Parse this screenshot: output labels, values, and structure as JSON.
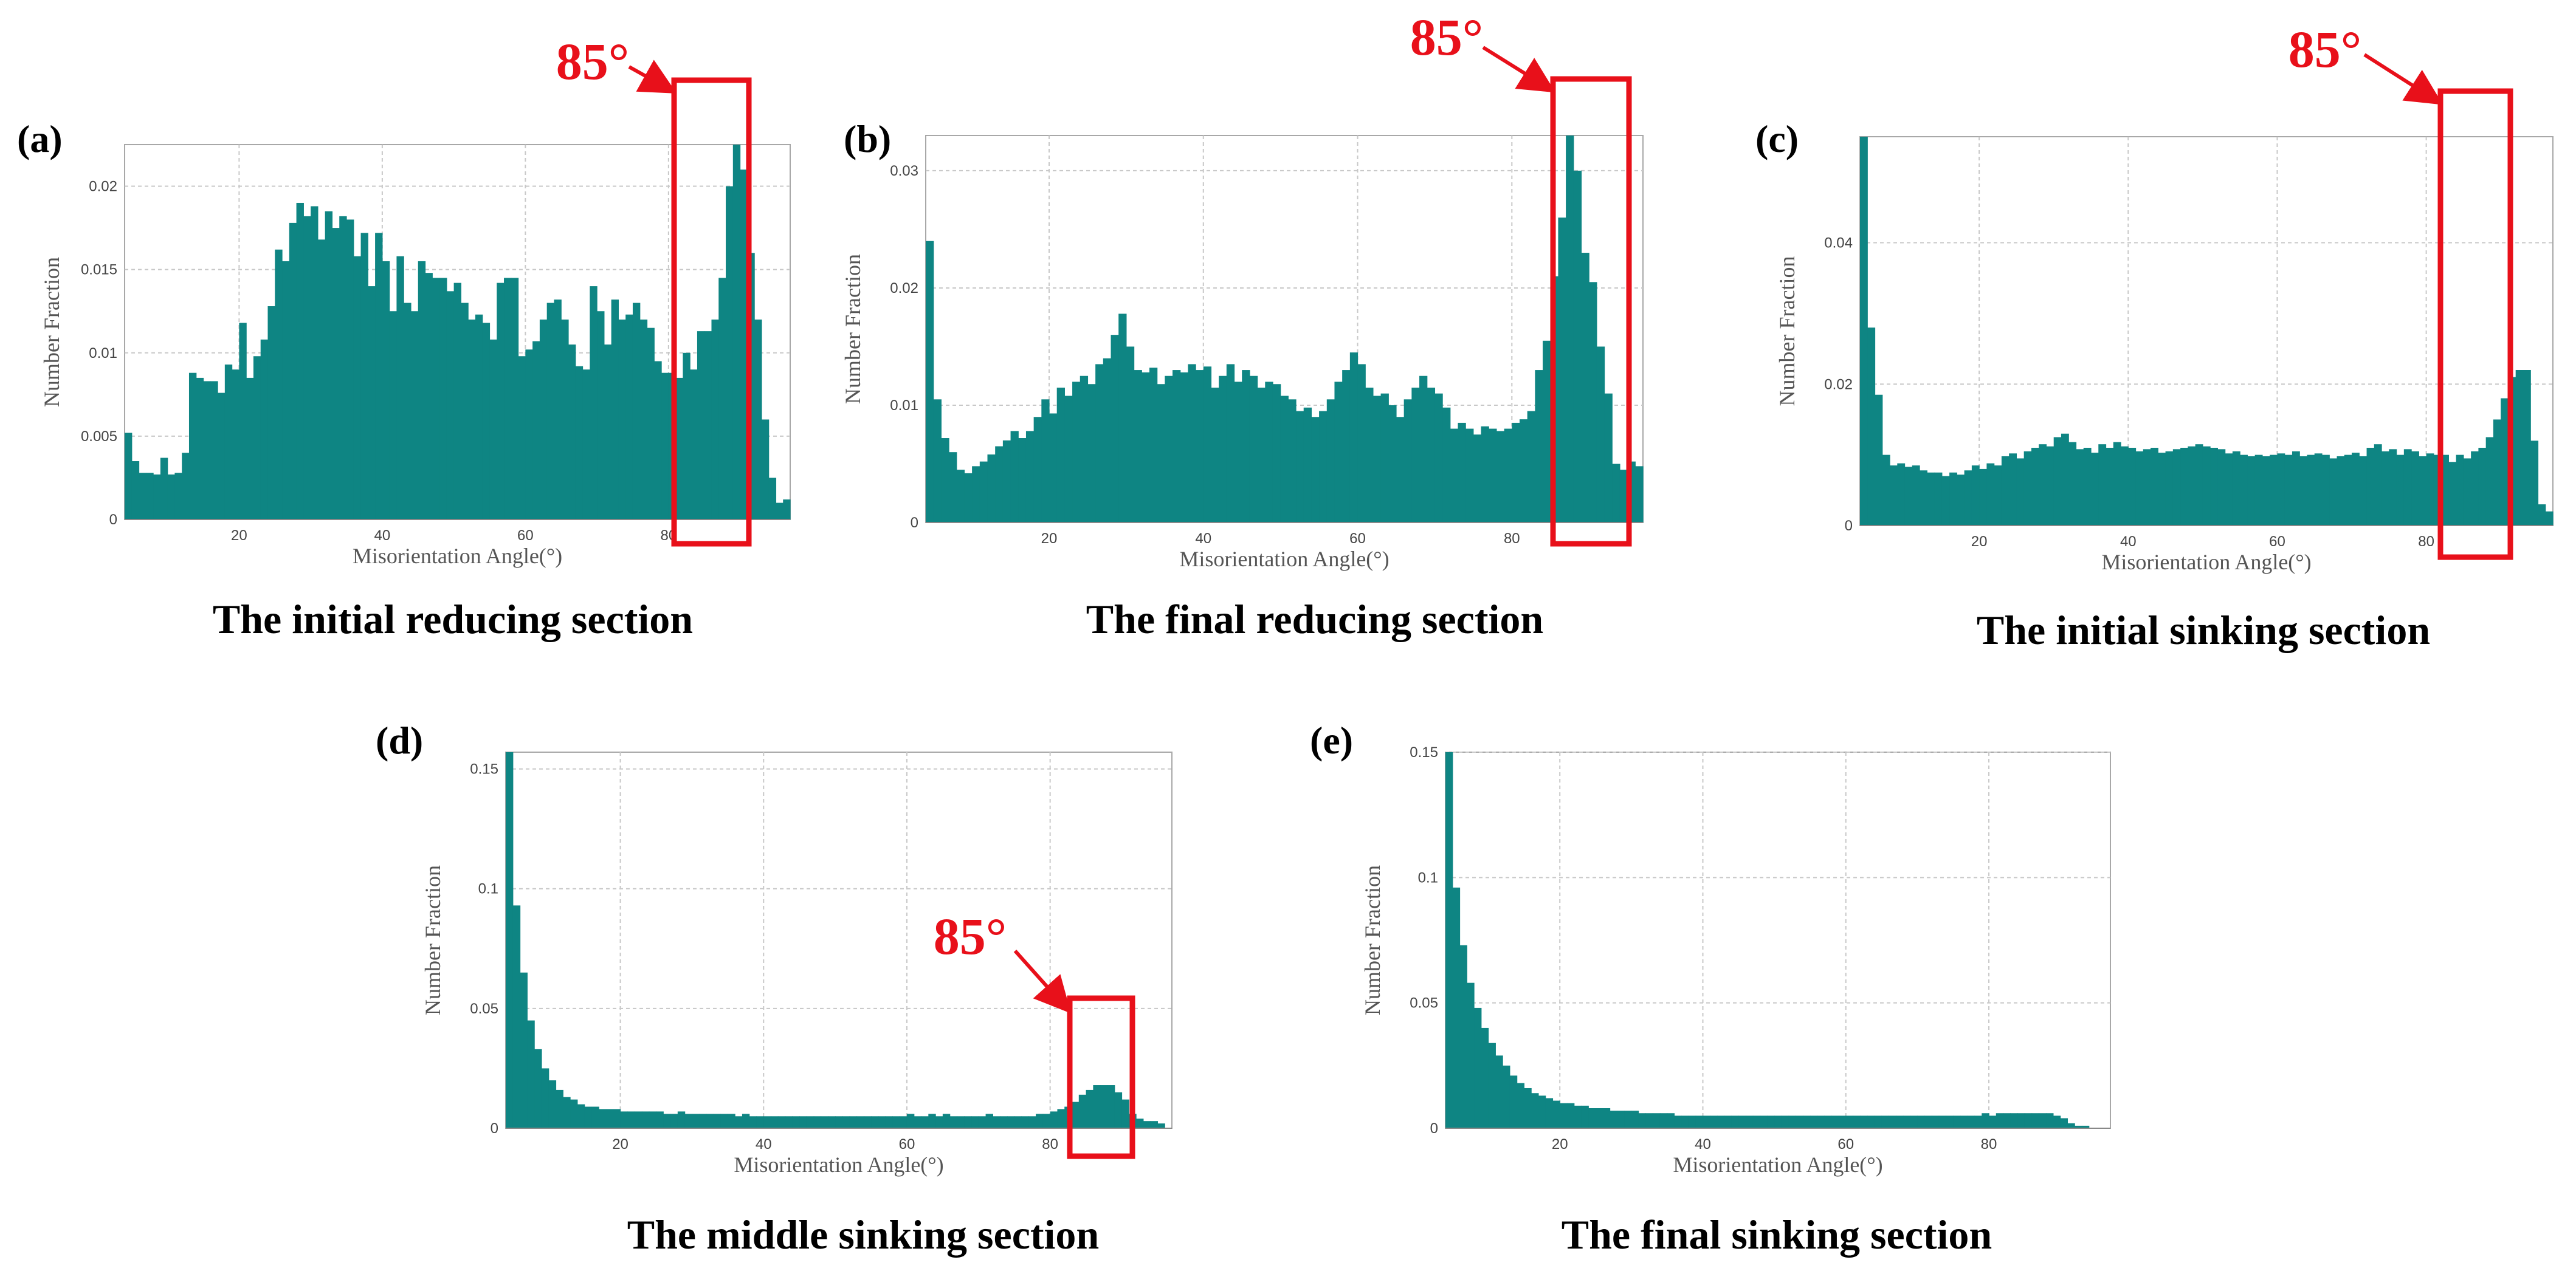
{
  "colors": {
    "bar": "#0e8583",
    "highlight": "#e8101a",
    "grid": "#c8c8c8",
    "frame": "#a8a8a8"
  },
  "chart_data": [
    {
      "type": "bar",
      "label": "(a)",
      "title": "The initial reducing section",
      "xlabel": "Misorientation Angle(°)",
      "ylabel": "Number Fraction",
      "xlim": [
        4,
        97
      ],
      "ylim": [
        0,
        0.0225
      ],
      "xticks": [
        "20",
        "40",
        "60",
        "80"
      ],
      "xtick_values": [
        20,
        40,
        60,
        80
      ],
      "yticks": [
        "0",
        "0.005",
        "0.01",
        "0.015",
        "0.02"
      ],
      "ytick_values": [
        0,
        0.005,
        0.01,
        0.015,
        0.02
      ],
      "bin_start": 4,
      "bin_width": 1,
      "values": [
        0.0052,
        0.0035,
        0.0028,
        0.0028,
        0.0027,
        0.0037,
        0.0027,
        0.0028,
        0.004,
        0.0088,
        0.0085,
        0.0083,
        0.0083,
        0.0076,
        0.0093,
        0.009,
        0.0118,
        0.0085,
        0.0098,
        0.0108,
        0.0128,
        0.0162,
        0.0155,
        0.0178,
        0.019,
        0.0182,
        0.0188,
        0.0168,
        0.0185,
        0.0175,
        0.0182,
        0.018,
        0.0158,
        0.0172,
        0.014,
        0.0172,
        0.0155,
        0.0125,
        0.0158,
        0.013,
        0.0125,
        0.0155,
        0.0148,
        0.0145,
        0.0145,
        0.0137,
        0.0142,
        0.013,
        0.012,
        0.0123,
        0.0118,
        0.0108,
        0.0142,
        0.0145,
        0.0145,
        0.0098,
        0.0102,
        0.0107,
        0.012,
        0.013,
        0.0132,
        0.012,
        0.0105,
        0.0092,
        0.009,
        0.014,
        0.0125,
        0.0105,
        0.0132,
        0.012,
        0.0123,
        0.013,
        0.012,
        0.0115,
        0.0095,
        0.0088,
        0.0088,
        0.0085,
        0.01,
        0.009,
        0.0113,
        0.0113,
        0.012,
        0.0145,
        0.02,
        0.0225,
        0.021,
        0.016,
        0.012,
        0.006,
        0.0025,
        0.001,
        0.0012
      ],
      "annotation": {
        "text": "85°",
        "range": [
          80.5,
          92
        ]
      }
    },
    {
      "type": "bar",
      "label": "(b)",
      "title": "The final reducing section",
      "xlabel": "Misorientation Angle(°)",
      "ylabel": "Number Fraction",
      "xlim": [
        4,
        97
      ],
      "ylim": [
        0,
        0.033
      ],
      "xticks": [
        "20",
        "40",
        "60",
        "80"
      ],
      "xtick_values": [
        20,
        40,
        60,
        80
      ],
      "yticks": [
        "0",
        "0.01",
        "0.02",
        "0.03"
      ],
      "ytick_values": [
        0,
        0.01,
        0.02,
        0.03
      ],
      "bin_start": 4,
      "bin_width": 1,
      "values": [
        0.024,
        0.0105,
        0.0072,
        0.006,
        0.0045,
        0.0042,
        0.0048,
        0.0052,
        0.0058,
        0.0065,
        0.007,
        0.0078,
        0.0072,
        0.0078,
        0.009,
        0.0105,
        0.0093,
        0.0115,
        0.0108,
        0.012,
        0.0125,
        0.0118,
        0.0135,
        0.014,
        0.016,
        0.0178,
        0.015,
        0.013,
        0.0128,
        0.0132,
        0.0118,
        0.0125,
        0.013,
        0.0128,
        0.0135,
        0.013,
        0.0133,
        0.0115,
        0.0125,
        0.0135,
        0.012,
        0.013,
        0.0125,
        0.0115,
        0.012,
        0.0118,
        0.0108,
        0.0105,
        0.0095,
        0.0098,
        0.009,
        0.0095,
        0.0105,
        0.012,
        0.013,
        0.0145,
        0.0135,
        0.0115,
        0.0108,
        0.011,
        0.01,
        0.009,
        0.0105,
        0.0115,
        0.0125,
        0.0115,
        0.011,
        0.0098,
        0.008,
        0.0085,
        0.008,
        0.0075,
        0.0082,
        0.008,
        0.0078,
        0.008,
        0.0085,
        0.0088,
        0.0095,
        0.013,
        0.0155,
        0.021,
        0.026,
        0.033,
        0.03,
        0.023,
        0.0205,
        0.015,
        0.011,
        0.005,
        0.0045,
        0.0052,
        0.0048
      ],
      "annotation": {
        "text": "85°",
        "range": [
          81.5,
          92.5
        ]
      }
    },
    {
      "type": "bar",
      "label": "(c)",
      "title": "The initial sinking section",
      "xlabel": "Misorientation Angle(°)",
      "ylabel": "Number Fraction",
      "xlim": [
        4,
        97
      ],
      "ylim": [
        0,
        0.055
      ],
      "xticks": [
        "20",
        "40",
        "60",
        "80"
      ],
      "xtick_values": [
        20,
        40,
        60,
        80
      ],
      "yticks": [
        "0",
        "0.02",
        "0.04"
      ],
      "ytick_values": [
        0,
        0.02,
        0.04
      ],
      "bin_start": 4,
      "bin_width": 1,
      "values": [
        0.055,
        0.028,
        0.0185,
        0.01,
        0.0085,
        0.0088,
        0.0083,
        0.0085,
        0.0078,
        0.0075,
        0.0075,
        0.007,
        0.0075,
        0.0072,
        0.0078,
        0.0085,
        0.008,
        0.0088,
        0.0085,
        0.0098,
        0.0102,
        0.0095,
        0.0105,
        0.011,
        0.0115,
        0.0112,
        0.0125,
        0.013,
        0.0118,
        0.0108,
        0.011,
        0.0103,
        0.0115,
        0.011,
        0.0118,
        0.0112,
        0.011,
        0.0105,
        0.0108,
        0.011,
        0.0103,
        0.0105,
        0.0108,
        0.011,
        0.0112,
        0.0115,
        0.0112,
        0.011,
        0.0108,
        0.0102,
        0.0105,
        0.01,
        0.0098,
        0.01,
        0.0098,
        0.01,
        0.0102,
        0.01,
        0.0105,
        0.0098,
        0.01,
        0.0102,
        0.01,
        0.0095,
        0.0098,
        0.01,
        0.0103,
        0.0098,
        0.011,
        0.0115,
        0.0105,
        0.0108,
        0.01,
        0.0108,
        0.0105,
        0.0098,
        0.0102,
        0.01,
        0.01,
        0.009,
        0.01,
        0.0095,
        0.0105,
        0.011,
        0.0125,
        0.015,
        0.018,
        0.021,
        0.022,
        0.022,
        0.012,
        0.003,
        0.002
      ],
      "annotation": {
        "text": "85°",
        "range": [
          81,
          92
        ]
      }
    },
    {
      "type": "bar",
      "label": "(d)",
      "title": "The middle sinking section",
      "xlabel": "Misorientation Angle(°)",
      "ylabel": "Number Fraction",
      "xlim": [
        4,
        97
      ],
      "ylim": [
        0,
        0.157
      ],
      "xticks": [
        "20",
        "40",
        "60",
        "80"
      ],
      "xtick_values": [
        20,
        40,
        60,
        80
      ],
      "yticks": [
        "0",
        "0.05",
        "0.1",
        "0.15"
      ],
      "ytick_values": [
        0,
        0.05,
        0.1,
        0.15
      ],
      "bin_start": 4,
      "bin_width": 1,
      "values": [
        0.157,
        0.093,
        0.065,
        0.045,
        0.033,
        0.025,
        0.02,
        0.016,
        0.013,
        0.012,
        0.01,
        0.009,
        0.009,
        0.008,
        0.008,
        0.008,
        0.007,
        0.007,
        0.007,
        0.007,
        0.007,
        0.007,
        0.006,
        0.006,
        0.007,
        0.006,
        0.006,
        0.006,
        0.006,
        0.006,
        0.006,
        0.006,
        0.005,
        0.006,
        0.005,
        0.005,
        0.005,
        0.005,
        0.005,
        0.005,
        0.005,
        0.005,
        0.005,
        0.005,
        0.005,
        0.005,
        0.005,
        0.005,
        0.005,
        0.005,
        0.005,
        0.005,
        0.005,
        0.005,
        0.005,
        0.005,
        0.006,
        0.005,
        0.005,
        0.006,
        0.005,
        0.006,
        0.005,
        0.005,
        0.005,
        0.005,
        0.005,
        0.006,
        0.005,
        0.005,
        0.005,
        0.005,
        0.005,
        0.005,
        0.006,
        0.006,
        0.007,
        0.008,
        0.009,
        0.011,
        0.014,
        0.016,
        0.018,
        0.018,
        0.018,
        0.015,
        0.012,
        0.006,
        0.004,
        0.003,
        0.003,
        0.002
      ],
      "annotation": {
        "text": "85°",
        "range": [
          81,
          91
        ]
      }
    },
    {
      "type": "bar",
      "label": "(e)",
      "title": "The final sinking section",
      "xlabel": "Misorientation Angle(°)",
      "ylabel": "Number Fraction",
      "xlim": [
        4,
        97
      ],
      "ylim": [
        0,
        0.15
      ],
      "xticks": [
        "20",
        "40",
        "60",
        "80"
      ],
      "xtick_values": [
        20,
        40,
        60,
        80
      ],
      "yticks": [
        "0",
        "0.05",
        "0.1",
        "0.15"
      ],
      "ytick_values": [
        0,
        0.05,
        0.1,
        0.15
      ],
      "bin_start": 4,
      "bin_width": 1,
      "values": [
        0.15,
        0.096,
        0.073,
        0.058,
        0.048,
        0.04,
        0.034,
        0.029,
        0.025,
        0.021,
        0.018,
        0.016,
        0.014,
        0.013,
        0.012,
        0.011,
        0.01,
        0.01,
        0.009,
        0.009,
        0.008,
        0.008,
        0.008,
        0.007,
        0.007,
        0.007,
        0.007,
        0.006,
        0.006,
        0.006,
        0.006,
        0.006,
        0.005,
        0.005,
        0.005,
        0.005,
        0.005,
        0.005,
        0.005,
        0.005,
        0.005,
        0.005,
        0.005,
        0.005,
        0.005,
        0.005,
        0.005,
        0.005,
        0.005,
        0.005,
        0.005,
        0.005,
        0.005,
        0.005,
        0.005,
        0.005,
        0.005,
        0.005,
        0.005,
        0.005,
        0.005,
        0.005,
        0.005,
        0.005,
        0.005,
        0.005,
        0.005,
        0.005,
        0.005,
        0.005,
        0.005,
        0.005,
        0.005,
        0.005,
        0.005,
        0.006,
        0.005,
        0.006,
        0.006,
        0.006,
        0.006,
        0.006,
        0.006,
        0.006,
        0.006,
        0.005,
        0.004,
        0.002,
        0.001,
        0.001
      ]
    }
  ]
}
